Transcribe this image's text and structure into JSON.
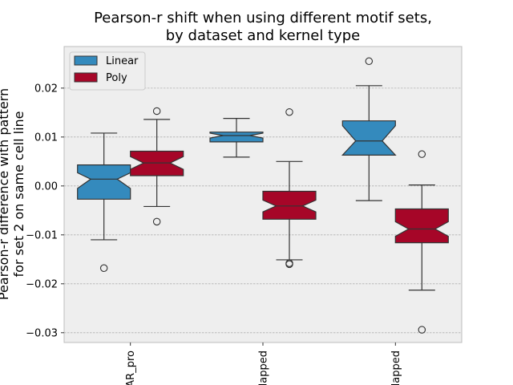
{
  "chart_data": {
    "type": "boxplot",
    "title_lines": [
      "Pearson-r shift when using different motif sets,",
      "by dataset and kernel type"
    ],
    "ylabel_lines": [
      "Pearson-r difference with pattern",
      "for set 2 on same cell line"
    ],
    "categories": [
      "AR_pro",
      "lapped",
      "lapped"
    ],
    "ylim": [
      -0.032,
      0.0285
    ],
    "yticks": [
      0.02,
      0.01,
      0.0,
      -0.01,
      -0.02,
      -0.03
    ],
    "ytick_labels": [
      "0.02",
      "0.01",
      "0.00",
      "−0.01",
      "−0.02",
      "−0.03"
    ],
    "grid": true,
    "legend_position": "top-left",
    "series": [
      {
        "name": "Linear",
        "color": "#348abd",
        "boxes": [
          {
            "whislo": -0.011,
            "q1": -0.0027,
            "notch_lo": -0.0005,
            "med": 0.0014,
            "notch_hi": 0.0027,
            "q3": 0.0043,
            "whishi": 0.0108,
            "fliers": [
              -0.0168
            ]
          },
          {
            "whislo": 0.0059,
            "q1": 0.009,
            "notch_lo": 0.0098,
            "med": 0.0103,
            "notch_hi": 0.0108,
            "q3": 0.011,
            "whishi": 0.0138,
            "fliers": []
          },
          {
            "whislo": -0.003,
            "q1": 0.0063,
            "notch_lo": 0.0063,
            "med": 0.0092,
            "notch_hi": 0.0123,
            "q3": 0.0133,
            "whishi": 0.0205,
            "fliers": [
              0.0255
            ]
          }
        ]
      },
      {
        "name": "Poly",
        "color": "#a60628",
        "boxes": [
          {
            "whislo": -0.0042,
            "q1": 0.0021,
            "notch_lo": 0.0034,
            "med": 0.0047,
            "notch_hi": 0.006,
            "q3": 0.0071,
            "whishi": 0.0136,
            "fliers": [
              0.0153,
              -0.0073
            ]
          },
          {
            "whislo": -0.0151,
            "q1": -0.0068,
            "notch_lo": -0.0053,
            "med": -0.0041,
            "notch_hi": -0.0029,
            "q3": -0.0011,
            "whishi": 0.005,
            "fliers": [
              0.0151,
              -0.0158,
              -0.016
            ]
          },
          {
            "whislo": -0.0213,
            "q1": -0.0116,
            "notch_lo": -0.0103,
            "med": -0.0088,
            "notch_hi": -0.0073,
            "q3": -0.0047,
            "whishi": 0.0002,
            "fliers": [
              0.0065,
              -0.0294
            ]
          }
        ]
      }
    ]
  }
}
